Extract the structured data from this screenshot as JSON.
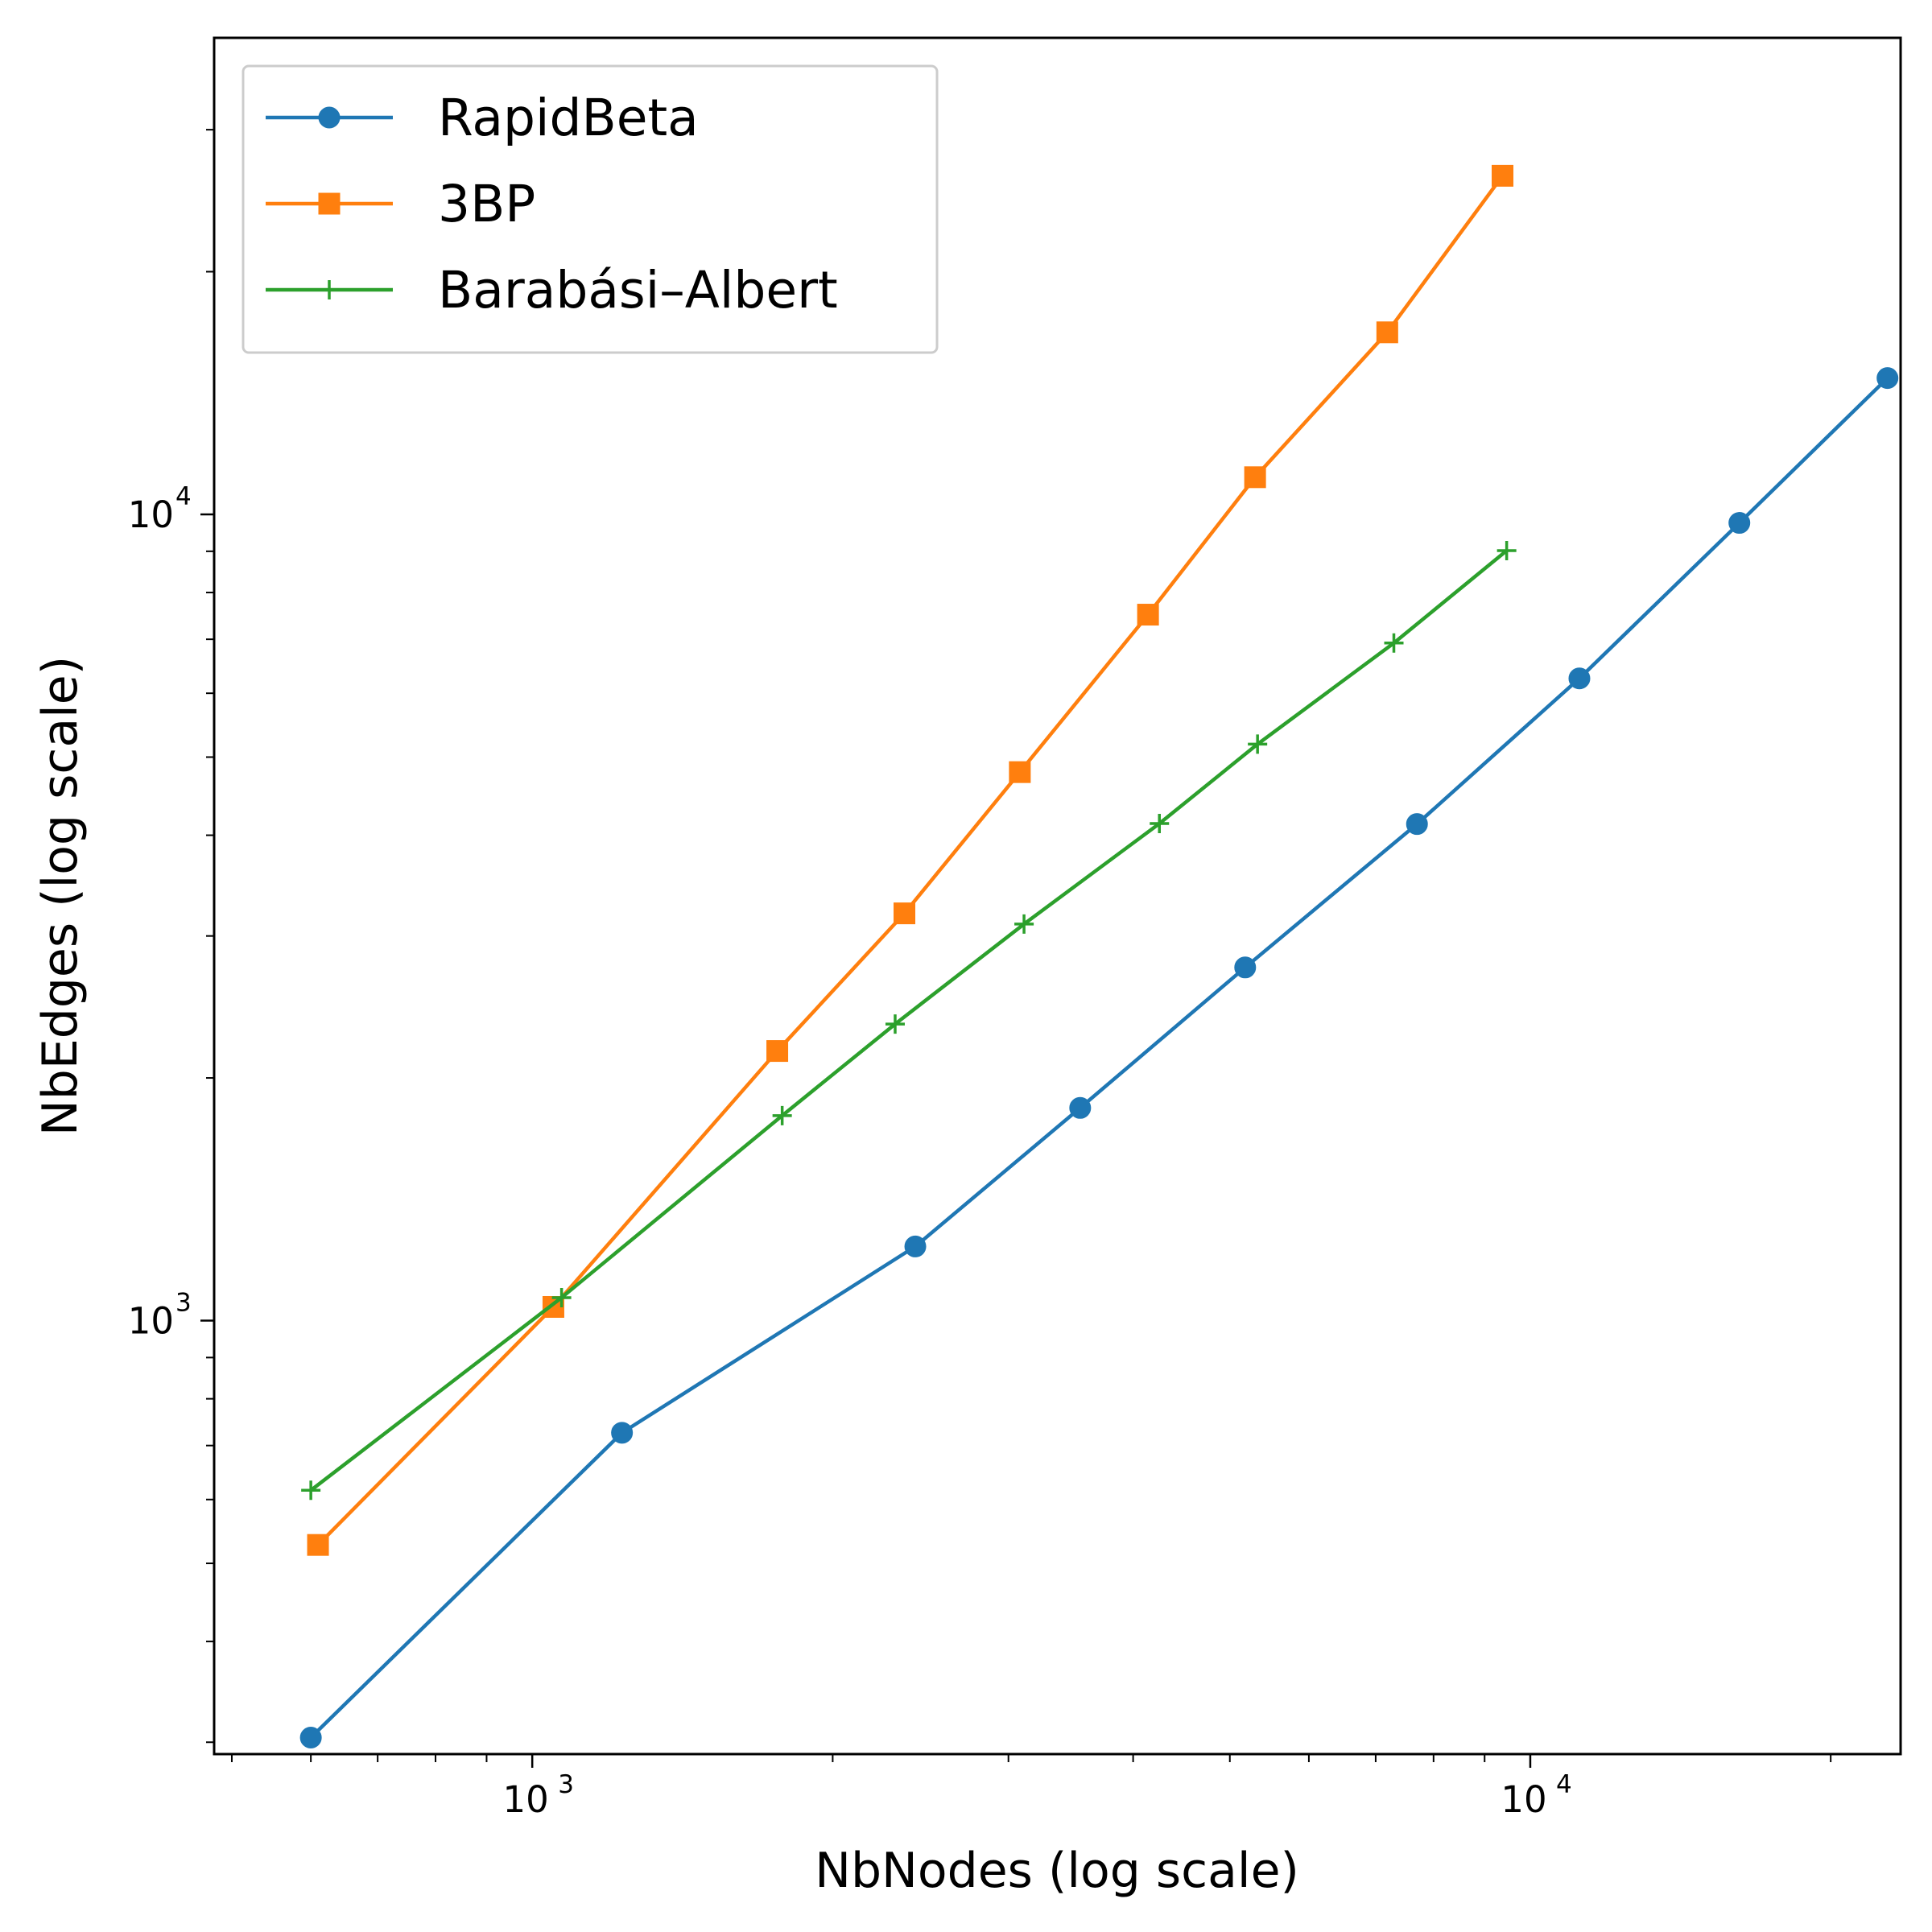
{
  "chart_data": {
    "type": "line",
    "xlabel": "NbNodes (log scale)",
    "ylabel": "NbEdges (log scale)",
    "xscale": "log",
    "yscale": "log",
    "xlim": [
      480,
      23500
    ],
    "ylim": [
      290,
      39000
    ],
    "x_major_ticks": [
      {
        "base": "10",
        "exp": "3",
        "value": 1000
      },
      {
        "base": "10",
        "exp": "4",
        "value": 10000
      }
    ],
    "y_major_ticks": [
      {
        "base": "10",
        "exp": "3",
        "value": 1000
      },
      {
        "base": "10",
        "exp": "4",
        "value": 10000
      }
    ],
    "grid": false,
    "legend_position": "top-left",
    "series": [
      {
        "name": "RapidBeta",
        "color": "#1f77b4",
        "marker": "circle",
        "points": [
          [
            600,
            304
          ],
          [
            1230,
            726
          ],
          [
            2420,
            1236
          ],
          [
            3540,
            1836
          ],
          [
            5180,
            2742
          ],
          [
            7700,
            4130
          ],
          [
            11200,
            6260
          ],
          [
            16200,
            9760
          ],
          [
            22800,
            14760
          ]
        ]
      },
      {
        "name": "3BP",
        "color": "#ff7f0e",
        "marker": "square",
        "points": [
          [
            610,
            527
          ],
          [
            1050,
            1040
          ],
          [
            1760,
            2160
          ],
          [
            2360,
            3200
          ],
          [
            3080,
            4790
          ],
          [
            4140,
            7510
          ],
          [
            5300,
            11120
          ],
          [
            7190,
            16820
          ],
          [
            9380,
            26300
          ]
        ]
      },
      {
        "name": "Barabási–Albert",
        "color": "#2ca02c",
        "marker": "plus",
        "points": [
          [
            600,
            616
          ],
          [
            1070,
            1068
          ],
          [
            1780,
            1796
          ],
          [
            2310,
            2333
          ],
          [
            3110,
            3104
          ],
          [
            4250,
            4136
          ],
          [
            5330,
            5188
          ],
          [
            7300,
            6926
          ],
          [
            9470,
            9016
          ]
        ]
      }
    ]
  }
}
